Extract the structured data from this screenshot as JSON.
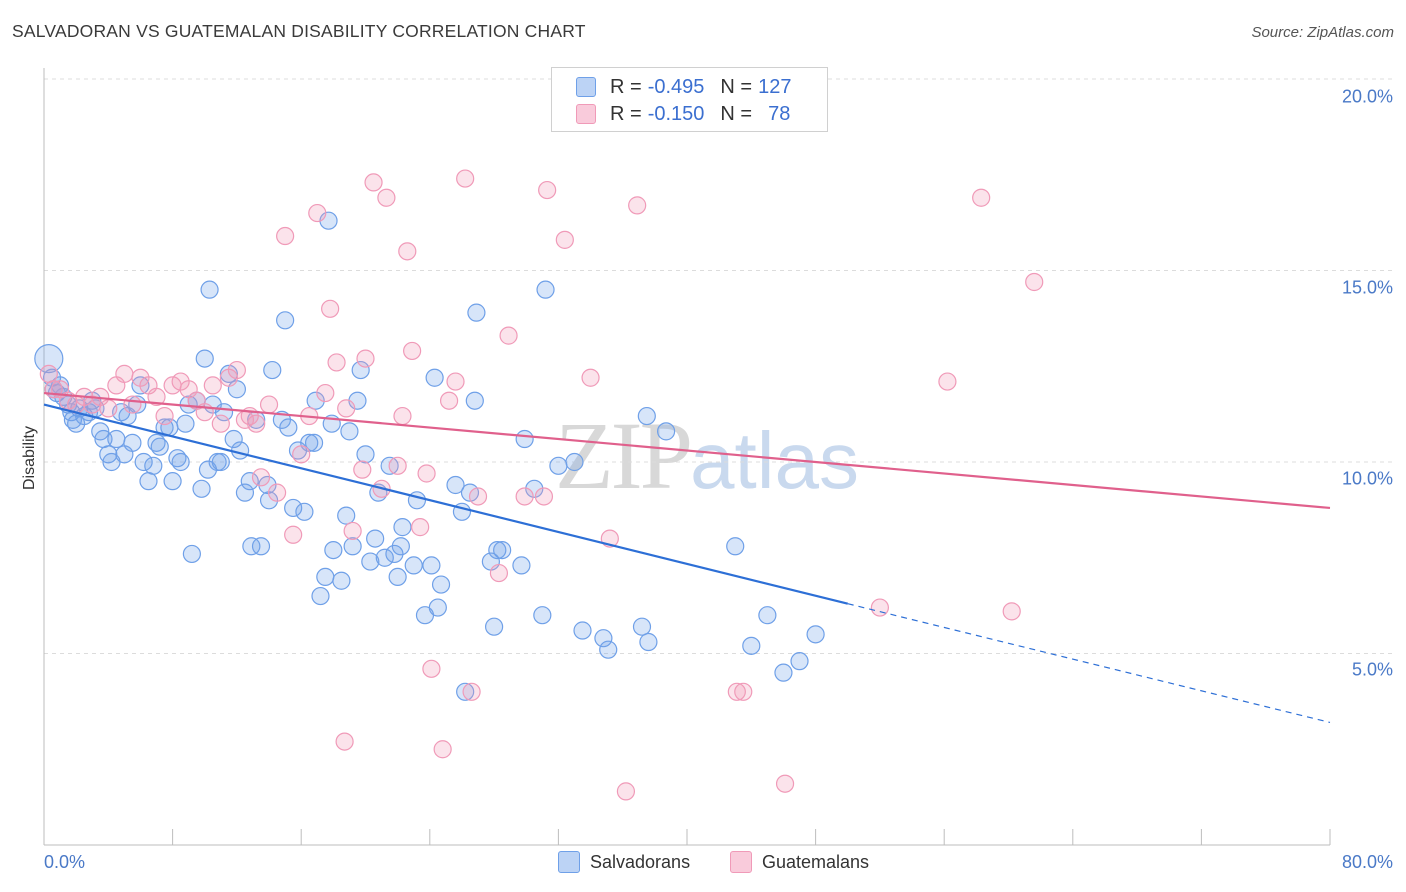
{
  "title": "SALVADORAN VS GUATEMALAN DISABILITY CORRELATION CHART",
  "source": "Source: ZipAtlas.com",
  "watermark": {
    "zip": "ZIP",
    "atlas": "atlas"
  },
  "legend": {
    "rows": [
      {
        "r_label": "R =",
        "r_value": "-0.495",
        "n_label": "N =",
        "n_value": "127",
        "color": "#6fa0e8"
      },
      {
        "r_label": "R =",
        "r_value": "-0.150",
        "n_label": "N =",
        "n_value": "78",
        "color": "#f09ab8"
      }
    ]
  },
  "bottom_legend": [
    {
      "label": "Salvadorans",
      "color": "#6fa0e8"
    },
    {
      "label": "Guatemalans",
      "color": "#f09ab8"
    }
  ],
  "chart_data": {
    "type": "scatter",
    "title": "SALVADORAN VS GUATEMALAN DISABILITY CORRELATION CHART",
    "xlabel": "",
    "ylabel": "Disability",
    "xlim": [
      0,
      80
    ],
    "ylim": [
      0,
      20
    ],
    "x_tick_labels": [
      "0.0%",
      "80.0%"
    ],
    "y_ticks": [
      5,
      10,
      15,
      20
    ],
    "y_tick_labels": [
      "5.0%",
      "10.0%",
      "15.0%",
      "20.0%"
    ],
    "grid": true,
    "series": [
      {
        "name": "Salvadorans",
        "color": "#6fa0e8",
        "line_color": "#2d6fd6",
        "trend": {
          "x0": 0,
          "y0": 11.5,
          "x1": 50,
          "y1": 6.3,
          "dash_to_x": 80,
          "dash_to_y": 3.2
        },
        "points": [
          [
            0.3,
            12.7
          ],
          [
            0.5,
            12.2
          ],
          [
            0.6,
            11.9
          ],
          [
            0.8,
            11.8
          ],
          [
            1.0,
            12.0
          ],
          [
            1.2,
            11.7
          ],
          [
            1.5,
            11.5
          ],
          [
            1.7,
            11.3
          ],
          [
            1.8,
            11.1
          ],
          [
            2.0,
            11.0
          ],
          [
            2.2,
            11.4
          ],
          [
            2.5,
            11.2
          ],
          [
            2.8,
            11.3
          ],
          [
            3.0,
            11.6
          ],
          [
            3.2,
            11.4
          ],
          [
            3.5,
            10.8
          ],
          [
            3.7,
            10.6
          ],
          [
            4.0,
            10.2
          ],
          [
            4.2,
            10.0
          ],
          [
            4.5,
            10.6
          ],
          [
            4.8,
            11.3
          ],
          [
            5.0,
            10.2
          ],
          [
            5.2,
            11.2
          ],
          [
            5.5,
            10.5
          ],
          [
            5.8,
            11.5
          ],
          [
            6.0,
            12.0
          ],
          [
            6.2,
            10.0
          ],
          [
            6.5,
            9.5
          ],
          [
            6.8,
            9.9
          ],
          [
            7.0,
            10.5
          ],
          [
            7.2,
            10.4
          ],
          [
            7.5,
            10.9
          ],
          [
            7.8,
            10.9
          ],
          [
            8.0,
            9.5
          ],
          [
            8.3,
            10.1
          ],
          [
            8.5,
            10.0
          ],
          [
            8.8,
            11.0
          ],
          [
            9.0,
            11.5
          ],
          [
            9.2,
            7.6
          ],
          [
            9.5,
            11.6
          ],
          [
            9.8,
            9.3
          ],
          [
            10.0,
            12.7
          ],
          [
            10.2,
            9.8
          ],
          [
            10.3,
            14.5
          ],
          [
            10.5,
            11.5
          ],
          [
            10.8,
            10.0
          ],
          [
            11.0,
            10.0
          ],
          [
            11.2,
            11.3
          ],
          [
            11.5,
            12.3
          ],
          [
            11.8,
            10.6
          ],
          [
            12.0,
            11.9
          ],
          [
            12.2,
            10.3
          ],
          [
            12.5,
            9.2
          ],
          [
            12.8,
            9.5
          ],
          [
            12.9,
            7.8
          ],
          [
            13.2,
            11.1
          ],
          [
            13.5,
            7.8
          ],
          [
            13.9,
            9.4
          ],
          [
            14.0,
            9.0
          ],
          [
            14.2,
            12.4
          ],
          [
            14.8,
            11.1
          ],
          [
            15.0,
            13.7
          ],
          [
            15.2,
            10.9
          ],
          [
            15.5,
            8.8
          ],
          [
            15.8,
            10.3
          ],
          [
            16.2,
            8.7
          ],
          [
            16.5,
            10.5
          ],
          [
            16.8,
            10.5
          ],
          [
            16.9,
            11.6
          ],
          [
            17.2,
            6.5
          ],
          [
            17.5,
            7.0
          ],
          [
            17.7,
            16.3
          ],
          [
            17.9,
            11.0
          ],
          [
            18.0,
            7.7
          ],
          [
            18.5,
            6.9
          ],
          [
            18.8,
            8.6
          ],
          [
            19.0,
            10.8
          ],
          [
            19.2,
            7.8
          ],
          [
            19.5,
            11.6
          ],
          [
            19.7,
            12.4
          ],
          [
            20.0,
            10.2
          ],
          [
            20.3,
            7.4
          ],
          [
            20.6,
            8.0
          ],
          [
            20.8,
            9.2
          ],
          [
            21.2,
            7.5
          ],
          [
            21.5,
            9.9
          ],
          [
            21.8,
            7.6
          ],
          [
            22.0,
            7.0
          ],
          [
            22.2,
            7.8
          ],
          [
            22.3,
            8.3
          ],
          [
            23.0,
            7.3
          ],
          [
            23.2,
            9.0
          ],
          [
            23.7,
            6.0
          ],
          [
            24.1,
            7.3
          ],
          [
            24.3,
            12.2
          ],
          [
            24.5,
            6.2
          ],
          [
            24.7,
            6.8
          ],
          [
            25.6,
            9.4
          ],
          [
            26.0,
            8.7
          ],
          [
            26.2,
            4.0
          ],
          [
            26.5,
            9.2
          ],
          [
            26.8,
            11.6
          ],
          [
            26.9,
            13.9
          ],
          [
            27.8,
            7.4
          ],
          [
            28.0,
            5.7
          ],
          [
            28.2,
            7.7
          ],
          [
            28.5,
            7.7
          ],
          [
            29.7,
            7.3
          ],
          [
            29.9,
            10.6
          ],
          [
            30.5,
            9.3
          ],
          [
            31.2,
            14.5
          ],
          [
            31.0,
            6.0
          ],
          [
            32.0,
            9.9
          ],
          [
            33.0,
            10.0
          ],
          [
            33.5,
            5.6
          ],
          [
            34.8,
            5.4
          ],
          [
            35.1,
            5.1
          ],
          [
            37.2,
            5.7
          ],
          [
            37.5,
            11.2
          ],
          [
            37.6,
            5.3
          ],
          [
            38.7,
            10.8
          ],
          [
            43.0,
            7.8
          ],
          [
            44.0,
            5.2
          ],
          [
            45.0,
            6.0
          ],
          [
            46.0,
            4.5
          ],
          [
            47.0,
            4.8
          ],
          [
            48.0,
            5.5
          ]
        ]
      },
      {
        "name": "Guatemalans",
        "color": "#f09ab8",
        "line_color": "#e0608c",
        "trend": {
          "x0": 0,
          "y0": 11.8,
          "x1": 80,
          "y1": 8.8
        },
        "points": [
          [
            0.3,
            12.3
          ],
          [
            0.6,
            11.9
          ],
          [
            1.0,
            11.9
          ],
          [
            1.5,
            11.6
          ],
          [
            2.0,
            11.5
          ],
          [
            2.5,
            11.7
          ],
          [
            3.0,
            11.5
          ],
          [
            3.5,
            11.7
          ],
          [
            4.0,
            11.4
          ],
          [
            4.5,
            12.0
          ],
          [
            5.0,
            12.3
          ],
          [
            5.5,
            11.5
          ],
          [
            6.0,
            12.2
          ],
          [
            6.5,
            12.0
          ],
          [
            7.0,
            11.7
          ],
          [
            7.5,
            11.2
          ],
          [
            8.0,
            12.0
          ],
          [
            8.5,
            12.1
          ],
          [
            9.0,
            11.9
          ],
          [
            9.5,
            11.6
          ],
          [
            10.0,
            11.3
          ],
          [
            10.5,
            12.0
          ],
          [
            11.0,
            11.0
          ],
          [
            11.5,
            12.2
          ],
          [
            12.0,
            12.4
          ],
          [
            12.5,
            11.1
          ],
          [
            12.8,
            11.2
          ],
          [
            13.2,
            11.0
          ],
          [
            13.5,
            9.6
          ],
          [
            14.0,
            11.5
          ],
          [
            14.5,
            9.2
          ],
          [
            15.0,
            15.9
          ],
          [
            15.5,
            8.1
          ],
          [
            16.0,
            10.2
          ],
          [
            16.5,
            11.2
          ],
          [
            17.0,
            16.5
          ],
          [
            17.5,
            11.8
          ],
          [
            17.8,
            14.0
          ],
          [
            18.2,
            12.6
          ],
          [
            18.8,
            11.4
          ],
          [
            19.2,
            8.2
          ],
          [
            19.8,
            9.8
          ],
          [
            20.0,
            12.7
          ],
          [
            20.5,
            17.3
          ],
          [
            21.0,
            9.3
          ],
          [
            21.3,
            16.9
          ],
          [
            22.0,
            9.9
          ],
          [
            22.3,
            11.2
          ],
          [
            22.6,
            15.5
          ],
          [
            22.9,
            12.9
          ],
          [
            23.4,
            8.3
          ],
          [
            23.8,
            9.7
          ],
          [
            24.1,
            4.6
          ],
          [
            24.8,
            2.5
          ],
          [
            25.2,
            11.6
          ],
          [
            25.6,
            12.1
          ],
          [
            26.2,
            17.4
          ],
          [
            26.6,
            4.0
          ],
          [
            27.0,
            9.1
          ],
          [
            28.3,
            7.1
          ],
          [
            28.9,
            13.3
          ],
          [
            29.9,
            9.1
          ],
          [
            31.1,
            9.1
          ],
          [
            31.3,
            17.1
          ],
          [
            32.4,
            15.8
          ],
          [
            34.0,
            12.2
          ],
          [
            35.2,
            8.0
          ],
          [
            36.2,
            1.4
          ],
          [
            36.9,
            16.7
          ],
          [
            43.1,
            4.0
          ],
          [
            43.5,
            4.0
          ],
          [
            46.1,
            1.6
          ],
          [
            52.0,
            6.2
          ],
          [
            56.2,
            12.1
          ],
          [
            58.3,
            16.9
          ],
          [
            60.2,
            6.1
          ],
          [
            61.6,
            14.7
          ],
          [
            18.7,
            2.7
          ]
        ]
      }
    ]
  }
}
